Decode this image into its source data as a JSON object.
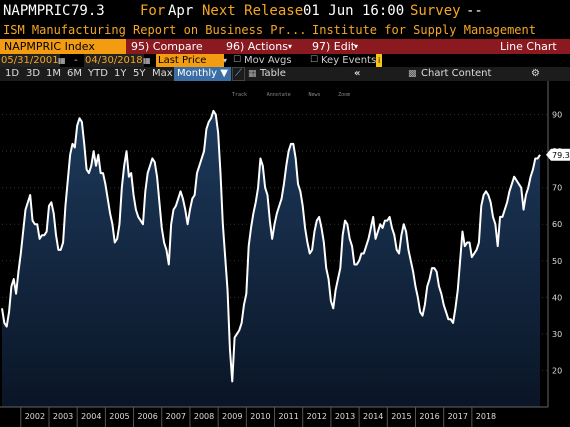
{
  "header": {
    "ticker": "NAPMPRIC",
    "last_value": "79.3",
    "for_label": "For",
    "for_value": "Apr",
    "next_release_label": "Next Release",
    "next_release_value": "01 Jun 16:00",
    "survey_label": "Survey",
    "survey_value": "--"
  },
  "subtitle": {
    "description": "ISM Manufacturing Report on Business Pr...",
    "source": "Institute for Supply Management"
  },
  "menubar": {
    "index_label": "NAPMPRIC Index",
    "compare": "95) Compare",
    "actions": "96) Actions",
    "edit": "97) Edit",
    "chart_type": "Line Chart"
  },
  "options": {
    "start_date": "05/31/2001",
    "end_date": "04/30/2018",
    "field": "Last Price",
    "mov_avgs": "Mov Avgs",
    "key_events": "Key Events"
  },
  "toolbar": {
    "periods": [
      "1D",
      "3D",
      "1M",
      "6M",
      "YTD",
      "1Y",
      "5Y",
      "Max"
    ],
    "frequency": "Monthly",
    "table": "Table",
    "chart_content": "Chart Content",
    "annotation_tools": [
      "Track",
      "Annotate",
      "News",
      "Zoom"
    ]
  },
  "colors": {
    "background": "#000000",
    "fill_top": "#1d3a5c",
    "fill_bottom": "#0a1526",
    "line": "#ffffff",
    "value_tag": "#ffffff",
    "accent": "#f5a623",
    "menubar": "#8b1a20"
  },
  "chart_data": {
    "type": "area",
    "title": "",
    "xlabel": "",
    "ylabel": "",
    "ylim": [
      10,
      97
    ],
    "y_ticks": [
      20,
      30,
      40,
      50,
      60,
      70,
      80,
      90
    ],
    "x_tick_labels": [
      "2002",
      "2003",
      "2004",
      "2005",
      "2006",
      "2007",
      "2008",
      "2009",
      "2010",
      "2011",
      "2012",
      "2013",
      "2014",
      "2015",
      "2016",
      "2017",
      "2018"
    ],
    "last_value_label": "79.3",
    "series": [
      {
        "start": "2001-05",
        "frequency": "monthly",
        "values": [
          37,
          33,
          32,
          36,
          43,
          45,
          41,
          47,
          52,
          58,
          64,
          66,
          68,
          61,
          60,
          60,
          56,
          57,
          57,
          58,
          65,
          66,
          63,
          57,
          53,
          53,
          55,
          65,
          72,
          79,
          82,
          81,
          87,
          89,
          88,
          82,
          75,
          74,
          76,
          80,
          76,
          79,
          74,
          74,
          71,
          67,
          63,
          60,
          55,
          56,
          60,
          70,
          76,
          80,
          73,
          74,
          68,
          64,
          62,
          61,
          60,
          69,
          74,
          76,
          78,
          77,
          73,
          66,
          59,
          55,
          53,
          49,
          60,
          64,
          65,
          67,
          69,
          67,
          64,
          60,
          64,
          67,
          68,
          74,
          76,
          78,
          80,
          86,
          88,
          89,
          91,
          90,
          85,
          74,
          60,
          51,
          42,
          26,
          17,
          29,
          30,
          31,
          33,
          38,
          41,
          54,
          59,
          63,
          66,
          70,
          78,
          76,
          70,
          68,
          61,
          56,
          60,
          63,
          65,
          67,
          71,
          76,
          80,
          82,
          82,
          78,
          71,
          69,
          65,
          59,
          55,
          52,
          53,
          58,
          61,
          62,
          59,
          55,
          48,
          45,
          39,
          37,
          42,
          45,
          48,
          57,
          61,
          60,
          56,
          54,
          49,
          49,
          50,
          52,
          52,
          54,
          56,
          59,
          62,
          56,
          58,
          60,
          59,
          61,
          61,
          62,
          59,
          57,
          53,
          52,
          57,
          60,
          58,
          53,
          50,
          47,
          43,
          40,
          36,
          35,
          38,
          43,
          45,
          48,
          48,
          47,
          43,
          41,
          38,
          36,
          34,
          34,
          33,
          37,
          42,
          50,
          58,
          54,
          55,
          55,
          51,
          52,
          53,
          55,
          65,
          68,
          69,
          68,
          66,
          62,
          60,
          54,
          62,
          62,
          64,
          66,
          69,
          71,
          73,
          72,
          71,
          70,
          64,
          68,
          70,
          73,
          75,
          78,
          78,
          79
        ]
      }
    ]
  }
}
